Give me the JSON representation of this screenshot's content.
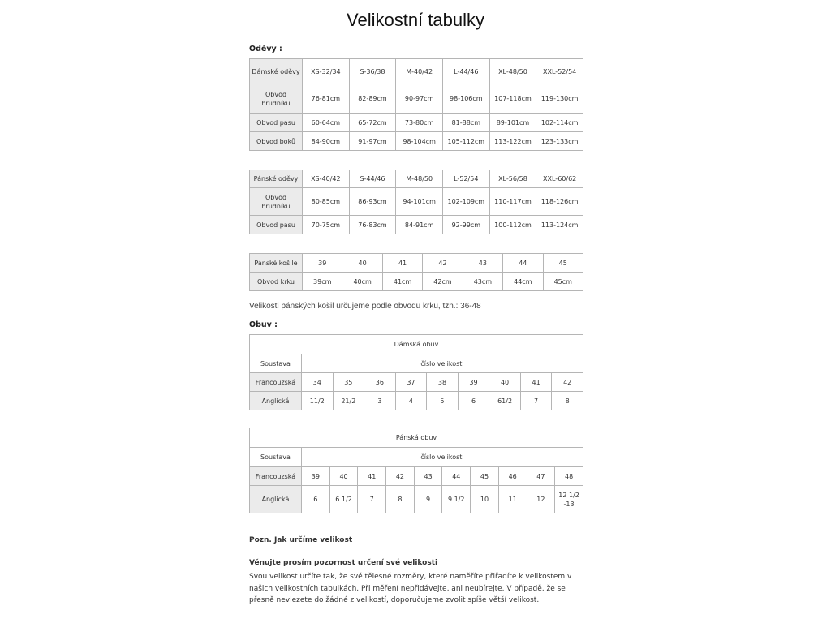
{
  "title": "Velikostní tabulky",
  "clothing_heading": "Oděvy :",
  "shoes_heading": "Obuv :",
  "shirts_note": "Velikosti pánských košil určujeme podle obvodu krku, tzn.: 36-48",
  "womens_clothing": {
    "rows": [
      [
        "Dámské oděvy",
        "XS-32/34",
        "S-36/38",
        "M-40/42",
        "L-44/46",
        "XL-48/50",
        "XXL-52/54"
      ],
      [
        "Obvod hrudníku",
        "76-81cm",
        "82-89cm",
        "90-97cm",
        "98-106cm",
        "107-118cm",
        "119-130cm"
      ],
      [
        "Obvod pasu",
        "60-64cm",
        "65-72cm",
        "73-80cm",
        "81-88cm",
        "89-101cm",
        "102-114cm"
      ],
      [
        "Obvod boků",
        "84-90cm",
        "91-97cm",
        "98-104cm",
        "105-112cm",
        "113-122cm",
        "123-133cm"
      ]
    ]
  },
  "mens_clothing": {
    "rows": [
      [
        "Pánské oděvy",
        "XS-40/42",
        "S-44/46",
        "M-48/50",
        "L-52/54",
        "XL-56/58",
        "XXL-60/62"
      ],
      [
        "Obvod hrudníku",
        "80-85cm",
        "86-93cm",
        "94-101cm",
        "102-109cm",
        "110-117cm",
        "118-126cm"
      ],
      [
        "Obvod pasu",
        "70-75cm",
        "76-83cm",
        "84-91cm",
        "92-99cm",
        "100-112cm",
        "113-124cm"
      ]
    ]
  },
  "mens_shirts": {
    "rows": [
      [
        "Pánské košile",
        "39",
        "40",
        "41",
        "42",
        "43",
        "44",
        "45"
      ],
      [
        "Obvod krku",
        "39cm",
        "40cm",
        "41cm",
        "42cm",
        "43cm",
        "44cm",
        "45cm"
      ]
    ]
  },
  "womens_shoes": {
    "caption": "Dámská obuv",
    "system_label": "Soustava",
    "size_label": "číslo velikosti",
    "rows": [
      [
        "Francouzská",
        "34",
        "35",
        "36",
        "37",
        "38",
        "39",
        "40",
        "41",
        "42"
      ],
      [
        "Anglická",
        "11/2",
        "21/2",
        "3",
        "4",
        "5",
        "6",
        "61/2",
        "7",
        "8"
      ]
    ]
  },
  "mens_shoes": {
    "caption": "Pánská obuv",
    "system_label": "Soustava",
    "size_label": "číslo velikosti",
    "rows": [
      [
        "Francouzská",
        "39",
        "40",
        "41",
        "42",
        "43",
        "44",
        "45",
        "46",
        "47",
        "48"
      ],
      [
        "Anglická",
        "6",
        "6 1/2",
        "7",
        "8",
        "9",
        "9 1/2",
        "10",
        "11",
        "12",
        "12 1/2 -13"
      ]
    ]
  },
  "note_heading": "Pozn. Jak určíme velikost",
  "advice_heading": "Věnujte prosím pozornost určení své velikosti",
  "advice_text": "Svou velikost určíte tak, že své tělesné rozměry, které naměříte přiřadíte k velikostem v našich velikostních tabulkách. Při měření nepřidávejte, ani neubírejte. V případě, že se přesně nevlezete do žádné z velikostí, doporučujeme zvolit spíše větší velikost."
}
